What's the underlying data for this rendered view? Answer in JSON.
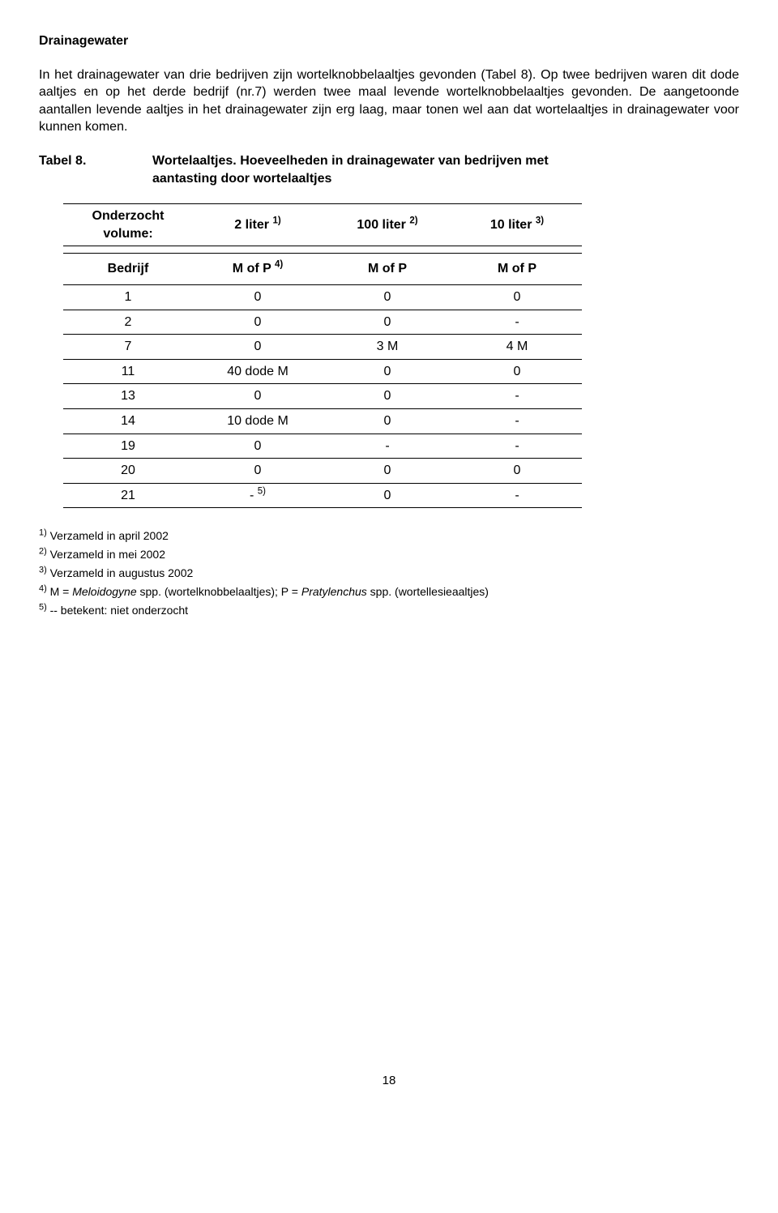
{
  "section_title": "Drainagewater",
  "paragraph": "In het drainagewater van drie bedrijven zijn wortelknobbelaaltjes gevonden (Tabel 8). Op twee bedrijven waren dit dode aaltjes en op het derde bedrijf (nr.7) werden twee maal levende wortelknobbelaaltjes gevonden. De aangetoonde aantallen levende aaltjes in het drainagewater zijn erg laag, maar tonen wel aan dat wortelaaltjes in drainagewater voor kunnen komen.",
  "caption_label": "Tabel 8.",
  "caption_text": "Wortelaaltjes. Hoeveelheden in drainagewater van bedrijven met aantasting door wortelaaltjes",
  "table": {
    "vol_label": "Onderzocht volume:",
    "vol_cols": [
      {
        "val": "2 liter",
        "sup": "1)"
      },
      {
        "val": "100 liter",
        "sup": "2)"
      },
      {
        "val": "10 liter",
        "sup": "3)"
      }
    ],
    "bedrijf_label": "Bedrijf",
    "hdr_cols": [
      {
        "val": "M of P",
        "sup": "4)"
      },
      {
        "val": "M of P",
        "sup": ""
      },
      {
        "val": "M of P",
        "sup": ""
      }
    ],
    "rows": [
      {
        "b": "1",
        "c1": "0",
        "c2": "0",
        "c3": "0"
      },
      {
        "b": "2",
        "c1": "0",
        "c2": "0",
        "c3": "-"
      },
      {
        "b": "7",
        "c1": "0",
        "c2": "3 M",
        "c3": "4 M"
      },
      {
        "b": "11",
        "c1": "40 dode M",
        "c2": "0",
        "c3": "0"
      },
      {
        "b": "13",
        "c1": "0",
        "c2": "0",
        "c3": "-"
      },
      {
        "b": "14",
        "c1": "10 dode M",
        "c2": "0",
        "c3": "-"
      },
      {
        "b": "19",
        "c1": "0",
        "c2": "-",
        "c3": "-"
      },
      {
        "b": "20",
        "c1": "0",
        "c2": "0",
        "c3": "0"
      },
      {
        "b": "21",
        "c1": "-",
        "c1sup": "5)",
        "c2": "0",
        "c3": "-"
      }
    ]
  },
  "footnotes": [
    {
      "sup": "1)",
      "text": "Verzameld in april 2002"
    },
    {
      "sup": "2)",
      "text": "Verzameld in mei 2002"
    },
    {
      "sup": "3)",
      "text": "Verzameld in augustus 2002"
    },
    {
      "sup": "4)",
      "pre": "M = ",
      "it1": "Meloidogyne",
      "mid": " spp. (wortelknobbelaaltjes); P = ",
      "it2": "Pratylenchus",
      "post": " spp. (wortellesieaaltjes)"
    },
    {
      "sup": "5)",
      "text": " -- betekent: niet onderzocht"
    }
  ],
  "page_number": "18"
}
